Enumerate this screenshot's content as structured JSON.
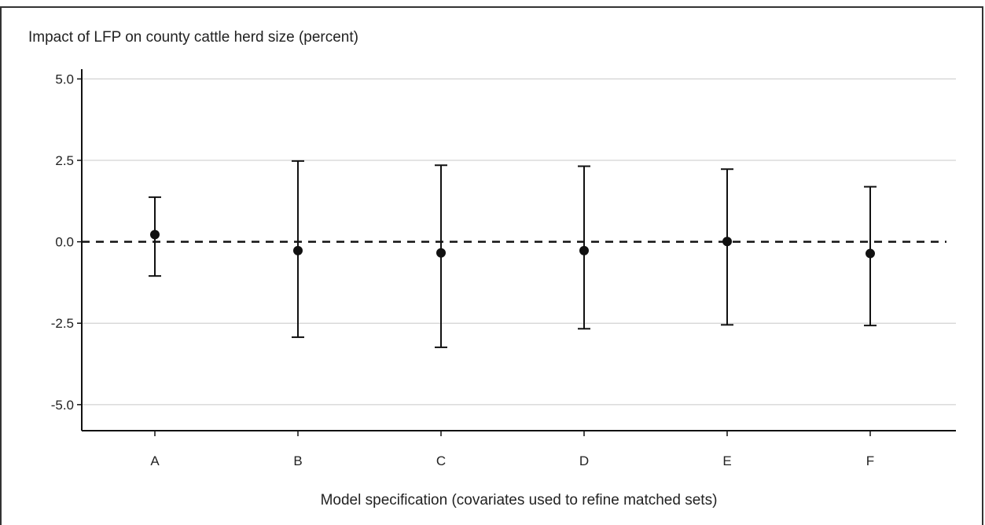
{
  "chart_data": {
    "type": "errorbar",
    "title": "",
    "ylabel": "Impact of LFP on county cattle herd size (percent)",
    "xlabel": "Model specification (covariates used to refine matched sets)",
    "ylim": [
      -5.8,
      5.3
    ],
    "yticks": [
      5.0,
      2.5,
      0.0,
      -2.5,
      -5.0
    ],
    "ytick_labels": [
      "5.0",
      "2.5",
      "0.0",
      "-2.5",
      "-5.0"
    ],
    "grid": true,
    "reference_line": 0.0,
    "categories": [
      "A",
      "B",
      "C",
      "D",
      "E",
      "F"
    ],
    "points": [
      {
        "x": "A",
        "y": 0.22,
        "low": -1.05,
        "high": 1.37
      },
      {
        "x": "B",
        "y": -0.27,
        "low": -2.93,
        "high": 2.48
      },
      {
        "x": "C",
        "y": -0.34,
        "low": -3.24,
        "high": 2.35
      },
      {
        "x": "D",
        "y": -0.27,
        "low": -2.67,
        "high": 2.32
      },
      {
        "x": "E",
        "y": 0.01,
        "low": -2.55,
        "high": 2.23
      },
      {
        "x": "F",
        "y": -0.36,
        "low": -2.57,
        "high": 1.69
      }
    ],
    "colors": {
      "marks": "#111111",
      "grid": "#c8c8c8",
      "axis": "#111111"
    }
  }
}
